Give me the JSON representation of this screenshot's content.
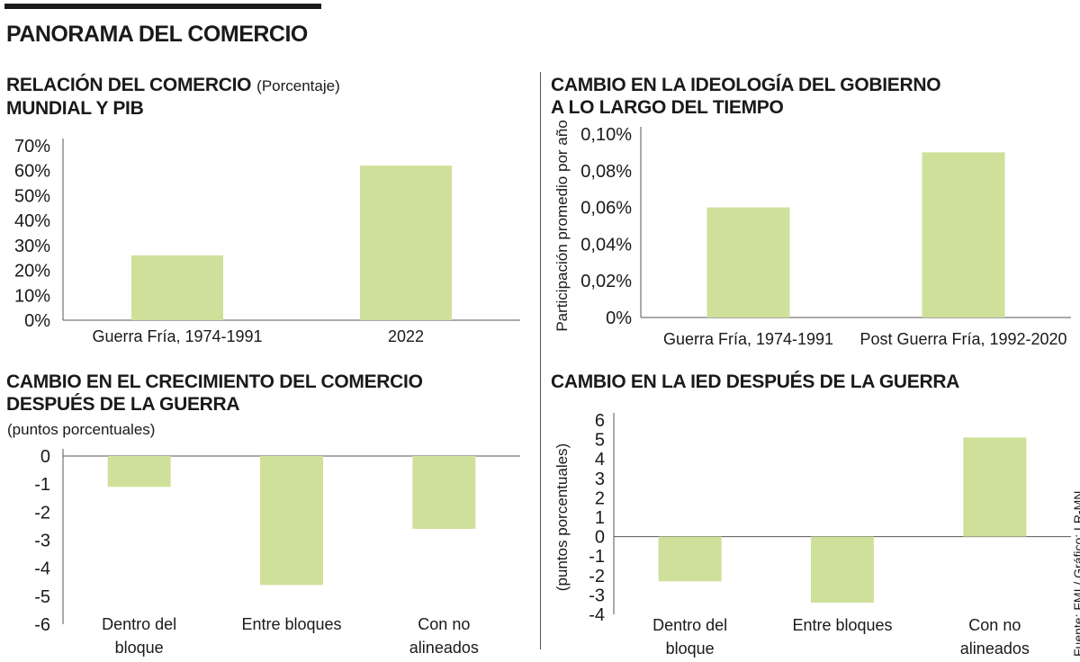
{
  "page": {
    "title": "PANORAMA DEL COMERCIO",
    "source": "Fuente: FMI / Gráfico: LR-MN",
    "bar_color": "#cfe09a"
  },
  "chart_data": [
    {
      "type": "bar",
      "title": "RELACIÓN DEL COMERCIO",
      "title_line2": "MUNDIAL Y PIB",
      "subtitle": "(Porcentaje)",
      "xlabel": "",
      "ylabel": "",
      "categories": [
        "Guerra Fría, 1974-1991",
        "2022"
      ],
      "values": [
        26,
        62
      ],
      "ylim": [
        0,
        70
      ],
      "yticks": [
        0,
        10,
        20,
        30,
        40,
        50,
        60,
        70
      ],
      "ytick_labels": [
        "0%",
        "10%",
        "20%",
        "30%",
        "40%",
        "50%",
        "60%",
        "70%"
      ],
      "grid": false
    },
    {
      "type": "bar",
      "title": "CAMBIO EN LA IDEOLOGÍA DEL GOBIERNO",
      "title_line2": "A LO LARGO DEL TIEMPO",
      "xlabel": "",
      "ylabel": "Participación promedio por año",
      "categories": [
        "Guerra Fría, 1974-1991",
        "Post Guerra Fría, 1992-2020"
      ],
      "values": [
        0.06,
        0.09
      ],
      "ylim": [
        0,
        0.1
      ],
      "yticks": [
        0,
        0.02,
        0.04,
        0.06,
        0.08,
        0.1
      ],
      "ytick_labels": [
        "0%",
        "0,02%",
        "0,04%",
        "0,06%",
        "0,08%",
        "0,10%"
      ],
      "grid": false
    },
    {
      "type": "bar",
      "title": "CAMBIO EN EL CRECIMIENTO DEL COMERCIO",
      "title_line2": "DESPUÉS DE LA GUERRA",
      "subtitle": "(puntos porcentuales)",
      "xlabel": "",
      "ylabel": "",
      "categories": [
        "Dentro del bloque",
        "Entre bloques",
        "Con no alineados"
      ],
      "category_lines": [
        [
          "Dentro del",
          "bloque"
        ],
        [
          "Entre bloques"
        ],
        [
          "Con no",
          "alineados"
        ]
      ],
      "values": [
        -1.1,
        -4.6,
        -2.6
      ],
      "ylim": [
        -6,
        0
      ],
      "yticks": [
        0,
        -1,
        -2,
        -3,
        -4,
        -5,
        -6
      ],
      "ytick_labels": [
        "0",
        "-1",
        "-2",
        "-3",
        "-4",
        "-5",
        "-6"
      ],
      "grid": false
    },
    {
      "type": "bar",
      "title": "CAMBIO EN LA IED DESPUÉS DE LA GUERRA",
      "xlabel": "",
      "ylabel": "(puntos porcentuales)",
      "categories": [
        "Dentro del bloque",
        "Entre bloques",
        "Con no alineados"
      ],
      "category_lines": [
        [
          "Dentro del",
          "bloque"
        ],
        [
          "Entre bloques"
        ],
        [
          "Con no",
          "alineados"
        ]
      ],
      "values": [
        -2.3,
        -3.4,
        5.1
      ],
      "ylim": [
        -4,
        6
      ],
      "yticks": [
        6,
        5,
        4,
        3,
        2,
        1,
        0,
        -1,
        -2,
        -3,
        -4
      ],
      "ytick_labels": [
        "6",
        "5",
        "4",
        "3",
        "2",
        "1",
        "0",
        "-1",
        "-2",
        "-3",
        "-4"
      ],
      "grid": false
    }
  ]
}
